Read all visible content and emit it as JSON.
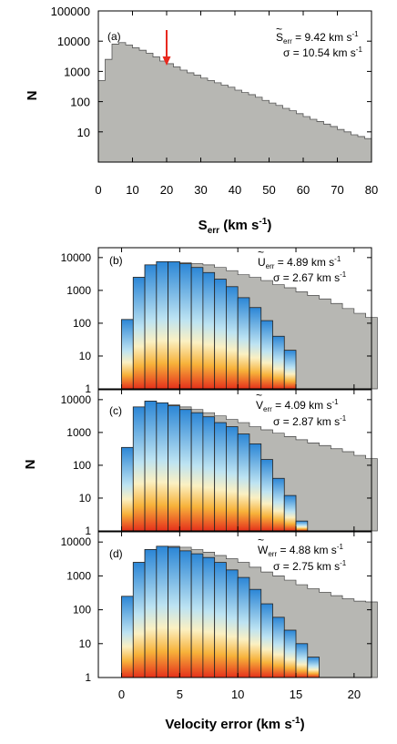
{
  "chart_data": [
    {
      "id": "a",
      "type": "bar",
      "panel_label": "(a)",
      "x_label_main": "S",
      "x_label_sub": "err",
      "x_label_unit": " (km s",
      "x_label_sup": "-1",
      "x_label_close": ")",
      "y_label": "N",
      "x_ticks": [
        "0",
        "10",
        "20",
        "30",
        "40",
        "50",
        "60",
        "70",
        "80"
      ],
      "x_tick_values": [
        0,
        10,
        20,
        30,
        40,
        50,
        60,
        70,
        80
      ],
      "y_ticks": [
        "10",
        "100",
        "1000",
        "10000",
        "100000"
      ],
      "y_tick_values": [
        10,
        100,
        1000,
        10000,
        100000
      ],
      "xlim": [
        0,
        80
      ],
      "ylim": [
        1,
        100000
      ],
      "y_scale": "log",
      "bin_width": 2,
      "bin_start": 0,
      "values": [
        500,
        2500,
        8000,
        9000,
        7500,
        6000,
        5000,
        4000,
        3000,
        2200,
        1800,
        1400,
        1100,
        900,
        750,
        600,
        500,
        420,
        350,
        300,
        240,
        200,
        170,
        140,
        110,
        90,
        75,
        60,
        50,
        40,
        32,
        26,
        22,
        18,
        15,
        12,
        10,
        8,
        7,
        6
      ],
      "marker": {
        "x": 20,
        "color": "#e8291f"
      },
      "annotation_line1_main": "S",
      "annotation_line1_sub": "err",
      "annotation_line1_value": " = 9.42 km s",
      "annotation_line1_sup": "-1",
      "annotation_line2": "σ = 10.54 km s",
      "annotation_line2_sup": "-1",
      "fill_color": "#b7b7b3"
    },
    {
      "id": "b",
      "type": "bar",
      "panel_label": "(b)",
      "y_ticks": [
        "1",
        "10",
        "100",
        "1000",
        "10000"
      ],
      "y_tick_values": [
        1,
        10,
        100,
        1000,
        10000
      ],
      "xlim": [
        -2,
        21.5
      ],
      "ylim": [
        1,
        20000
      ],
      "y_scale": "log",
      "bin_width": 1,
      "colored_start": 0,
      "colored_values": [
        130,
        2500,
        6000,
        7500,
        7500,
        6500,
        5000,
        3500,
        2200,
        1300,
        600,
        300,
        120,
        40,
        15
      ],
      "gray_start": 0,
      "gray_values": [
        130,
        2500,
        6000,
        7500,
        7500,
        7000,
        6500,
        6000,
        5000,
        4000,
        3000,
        2500,
        2000,
        1500,
        1200,
        900,
        700,
        550,
        400,
        280,
        200,
        150
      ],
      "annotation_line1_main": "U",
      "annotation_line1_sub": "err",
      "annotation_line1_value": " = 4.89 km s",
      "annotation_line1_sup": "-1",
      "annotation_line2": "σ = 2.67 km s",
      "annotation_line2_sup": "-1"
    },
    {
      "id": "c",
      "type": "bar",
      "panel_label": "(c)",
      "y_ticks": [
        "1",
        "10",
        "100",
        "1000",
        "10000"
      ],
      "y_tick_values": [
        1,
        10,
        100,
        1000,
        10000
      ],
      "xlim": [
        -2,
        21.5
      ],
      "ylim": [
        1,
        20000
      ],
      "y_scale": "log",
      "bin_width": 1,
      "colored_start": 0,
      "colored_values": [
        350,
        6000,
        9000,
        8000,
        6500,
        5000,
        4000,
        3000,
        2000,
        1500,
        900,
        450,
        150,
        40,
        12,
        2
      ],
      "gray_start": 0,
      "gray_values": [
        350,
        6000,
        9000,
        8000,
        7000,
        6000,
        5000,
        4000,
        3200,
        2500,
        2000,
        1500,
        1200,
        950,
        750,
        600,
        480,
        400,
        320,
        260,
        200,
        160
      ],
      "annotation_line1_main": "V",
      "annotation_line1_sub": "err",
      "annotation_line1_value": " = 4.09 km s",
      "annotation_line1_sup": "-1",
      "annotation_line2": "σ = 2.87 km s",
      "annotation_line2_sup": "-1"
    },
    {
      "id": "d",
      "type": "bar",
      "panel_label": "(d)",
      "y_ticks": [
        "1",
        "10",
        "100",
        "1000",
        "10000"
      ],
      "y_tick_values": [
        1,
        10,
        100,
        1000,
        10000
      ],
      "xlim": [
        -2,
        21.5
      ],
      "ylim": [
        1,
        20000
      ],
      "y_scale": "log",
      "bin_width": 1,
      "colored_start": 0,
      "colored_values": [
        250,
        2500,
        6000,
        7500,
        7000,
        5500,
        4500,
        3500,
        2500,
        1500,
        900,
        400,
        150,
        60,
        25,
        10,
        4
      ],
      "gray_start": 0,
      "gray_values": [
        250,
        2500,
        6000,
        7500,
        7500,
        7000,
        6000,
        5000,
        4000,
        3200,
        2500,
        1800,
        1300,
        1000,
        750,
        550,
        420,
        330,
        260,
        210,
        180,
        170
      ],
      "annotation_line1_main": "W",
      "annotation_line1_sub": "err",
      "annotation_line1_value": " = 4.88 km s",
      "annotation_line1_sup": "-1",
      "annotation_line2": "σ = 2.75 km s",
      "annotation_line2_sup": "-1"
    }
  ],
  "shared_bottom": {
    "x_ticks": [
      "0",
      "5",
      "10",
      "15",
      "20"
    ],
    "x_tick_values": [
      0,
      5,
      10,
      15,
      20
    ],
    "x_label_main": "Velocity error (km s",
    "x_label_sup": "-1",
    "x_label_close": ")",
    "y_label": "N"
  },
  "colors": {
    "gray_fill": "#b7b7b3",
    "gradient_top": "#2b86d6",
    "gradient_mid1": "#bde3f2",
    "gradient_mid2": "#fbf0c2",
    "gradient_mid3": "#f7b23a",
    "gradient_bottom": "#e5301b",
    "marker": "#e8291f"
  }
}
